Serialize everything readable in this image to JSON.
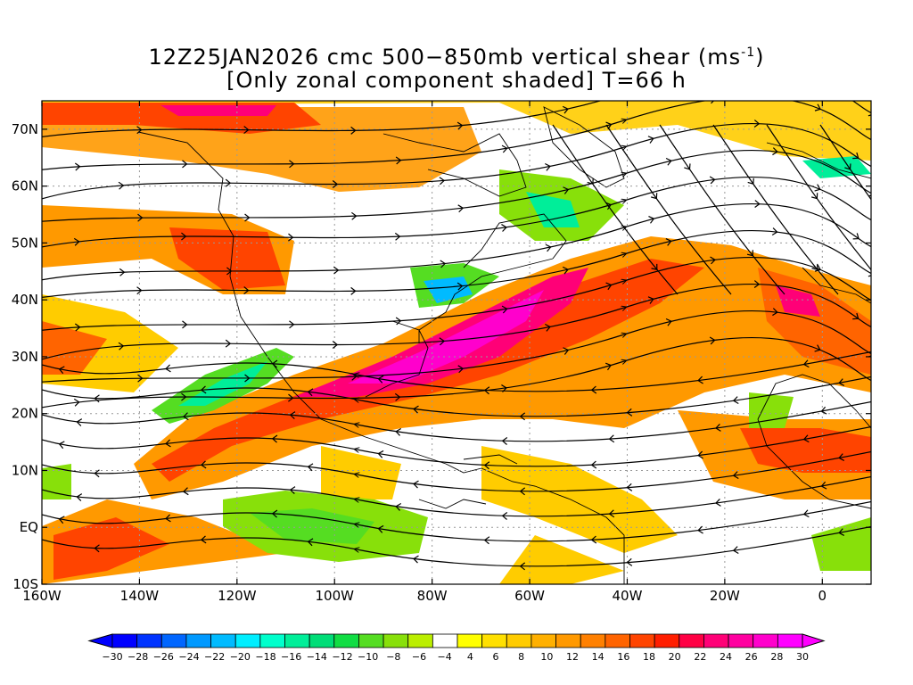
{
  "title": {
    "line1_prefix": "12Z25JAN2026 cmc 500−850mb vertical shear (ms",
    "line1_sup": "-1",
    "line1_suffix": ")",
    "line2": "[Only zonal component shaded] T=66 h"
  },
  "map": {
    "lon_range": [
      -160,
      10
    ],
    "lat_range": [
      -10,
      75
    ],
    "lat_ticks": [
      {
        "value": 70,
        "label": "70N"
      },
      {
        "value": 60,
        "label": "60N"
      },
      {
        "value": 50,
        "label": "50N"
      },
      {
        "value": 40,
        "label": "40N"
      },
      {
        "value": 30,
        "label": "30N"
      },
      {
        "value": 20,
        "label": "20N"
      },
      {
        "value": 10,
        "label": "10N"
      },
      {
        "value": 0,
        "label": "EQ"
      },
      {
        "value": -10,
        "label": "10S"
      }
    ],
    "lon_ticks": [
      {
        "value": -160,
        "label": "160W"
      },
      {
        "value": -140,
        "label": "140W"
      },
      {
        "value": -120,
        "label": "120W"
      },
      {
        "value": -100,
        "label": "100W"
      },
      {
        "value": -80,
        "label": "80W"
      },
      {
        "value": -60,
        "label": "60W"
      },
      {
        "value": -40,
        "label": "40W"
      },
      {
        "value": -20,
        "label": "20W"
      },
      {
        "value": 0,
        "label": "0"
      }
    ],
    "grid_lines": "dotted",
    "shading_field": "zonal component of 500-850mb vertical shear",
    "overlay": "streamlines"
  },
  "colorbar": {
    "labels": [
      "-30",
      "-28",
      "-26",
      "-24",
      "-22",
      "-20",
      "-18",
      "-16",
      "-14",
      "-12",
      "-10",
      "-8",
      "-6",
      "-4",
      "4",
      "6",
      "8",
      "10",
      "12",
      "14",
      "16",
      "18",
      "20",
      "22",
      "24",
      "26",
      "28",
      "30"
    ],
    "colors": [
      "#0000ff",
      "#0033ff",
      "#0066ff",
      "#0099ff",
      "#00bbff",
      "#00eeff",
      "#00ffcc",
      "#00ee99",
      "#00dd77",
      "#11dd44",
      "#55dd22",
      "#88e00a",
      "#bbee00",
      "#ffffff",
      "#ffff00",
      "#ffe000",
      "#ffcc00",
      "#ffb000",
      "#ff9900",
      "#ff8000",
      "#ff6400",
      "#ff4400",
      "#ff1e00",
      "#ff0044",
      "#ff0077",
      "#ff00a0",
      "#ff00cc",
      "#ff00ff"
    ]
  }
}
